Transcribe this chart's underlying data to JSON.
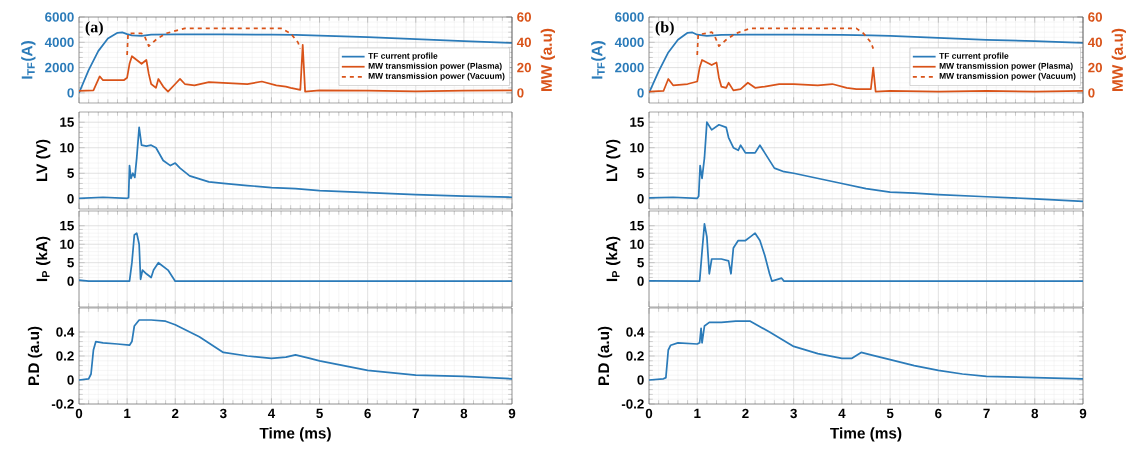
{
  "chart_data": [
    {
      "type": "line",
      "ylabel": "I$_{TF}$(A)",
      "y2label": "MW (a.u)",
      "annotations": [
        "(a)"
      ],
      "xlim": [
        0,
        9
      ],
      "xticks": [
        0,
        1,
        2,
        3,
        4,
        5,
        6,
        7,
        8,
        9
      ],
      "ylim": [
        -800,
        6000
      ],
      "yticks": [
        0,
        2000,
        4000,
        6000
      ],
      "y2lim": [
        -8,
        60
      ],
      "y2ticks": [
        0,
        20,
        40,
        60
      ],
      "grid": true,
      "legend": "bottom right",
      "tick_labels": "y",
      "series": [
        {
          "name": "TF current profile",
          "color": "#2b7bb9",
          "x": [
            0,
            0.2,
            0.4,
            0.6,
            0.8,
            0.9,
            1.0,
            1.1,
            1.3,
            1.5,
            2,
            3,
            4,
            4.5,
            5,
            6,
            7,
            8,
            9
          ],
          "values": [
            0,
            1800,
            3300,
            4300,
            4750,
            4780,
            4650,
            4550,
            4500,
            4600,
            4620,
            4620,
            4600,
            4580,
            4520,
            4400,
            4250,
            4100,
            3950
          ]
        },
        {
          "name": "MW transmission power (Plasma)",
          "color": "#d95319",
          "axis": "y2",
          "x": [
            0,
            0.3,
            0.43,
            0.5,
            0.93,
            1.0,
            1.05,
            1.1,
            1.2,
            1.3,
            1.4,
            1.45,
            1.5,
            1.6,
            1.65,
            1.75,
            1.85,
            2.0,
            2.1,
            2.2,
            2.4,
            2.7,
            3.0,
            3.5,
            3.8,
            4.1,
            4.3,
            4.4,
            4.6,
            4.65,
            4.7,
            5,
            6,
            7,
            8,
            9
          ],
          "values": [
            1.5,
            2,
            13,
            10,
            10,
            12,
            23,
            29,
            26,
            23,
            26,
            15,
            7,
            4,
            11,
            5,
            1,
            7,
            11,
            7,
            6,
            8.5,
            8,
            7,
            9,
            6,
            5,
            4,
            2.4,
            38,
            1,
            2,
            1.7,
            1.2,
            1.7,
            2
          ]
        },
        {
          "name": "MW transmission power (Vacuum)",
          "color": "#d95319",
          "axis": "y2",
          "line_style": "dashed",
          "x": [
            1.0,
            1.02,
            1.3,
            1.35,
            1.45,
            1.6,
            1.8,
            2.0,
            2.2,
            3,
            4,
            4.2,
            4.4,
            4.55,
            4.6
          ],
          "values": [
            30,
            47,
            47,
            46,
            37,
            42,
            47,
            49,
            51,
            51,
            51,
            51,
            47,
            40,
            35
          ]
        }
      ]
    },
    {
      "type": "line",
      "ylabel": "LV (V)",
      "xlim": [
        0,
        9
      ],
      "xticks": [
        0,
        1,
        2,
        3,
        4,
        5,
        6,
        7,
        8,
        9
      ],
      "ylim": [
        -2,
        17
      ],
      "yticks": [
        0,
        5,
        10,
        15
      ],
      "grid": true,
      "tick_labels": "y",
      "series": [
        {
          "color": "#2b7bb9",
          "x": [
            0,
            0.5,
            1.0,
            1.03,
            1.05,
            1.08,
            1.12,
            1.16,
            1.2,
            1.25,
            1.3,
            1.4,
            1.5,
            1.6,
            1.75,
            1.9,
            2.0,
            2.1,
            2.3,
            2.7,
            3,
            3.5,
            4,
            4.5,
            5,
            6,
            7,
            8,
            9
          ],
          "values": [
            0.1,
            0.3,
            0.1,
            0.2,
            6.5,
            4,
            5,
            4.2,
            8,
            14,
            10.5,
            10.3,
            10.5,
            10,
            7.5,
            6.5,
            7,
            6,
            4.5,
            3.3,
            3,
            2.6,
            2.2,
            2,
            1.6,
            1.2,
            0.8,
            0.5,
            0.3
          ]
        }
      ]
    },
    {
      "type": "line",
      "ylabel": "I$_{P}$ (kA)",
      "xlim": [
        0,
        9
      ],
      "xticks": [
        0,
        1,
        2,
        3,
        4,
        5,
        6,
        7,
        8,
        9
      ],
      "ylim": [
        -7,
        19
      ],
      "yticks": [
        0,
        5,
        10,
        15
      ],
      "grid": true,
      "tick_labels": "y",
      "series": [
        {
          "color": "#2b7bb9",
          "x": [
            0,
            0.2,
            1.05,
            1.1,
            1.15,
            1.2,
            1.25,
            1.28,
            1.32,
            1.4,
            1.5,
            1.55,
            1.65,
            1.75,
            1.85,
            1.95,
            2.0,
            9
          ],
          "values": [
            0.3,
            0,
            0,
            5,
            12.5,
            13,
            10,
            0.5,
            3,
            2,
            1,
            3,
            5,
            4,
            3,
            1,
            0,
            0
          ]
        }
      ]
    },
    {
      "type": "line",
      "ylabel": "P.D (a.u)",
      "xlabel": "Time (ms)",
      "xlim": [
        0,
        9
      ],
      "xticks": [
        0,
        1,
        2,
        3,
        4,
        5,
        6,
        7,
        8,
        9
      ],
      "ylim": [
        -0.2,
        0.6
      ],
      "yticks": [
        -0.2,
        0,
        0.2,
        0.4
      ],
      "grid": true,
      "series": [
        {
          "color": "#2b7bb9",
          "x": [
            0,
            0.2,
            0.25,
            0.3,
            0.35,
            0.5,
            0.8,
            1.05,
            1.1,
            1.15,
            1.25,
            1.5,
            1.8,
            2.0,
            2.5,
            3,
            3.5,
            4,
            4.3,
            4.5,
            4.8,
            5,
            5.5,
            6,
            6.5,
            7,
            8,
            9
          ],
          "values": [
            0,
            0.01,
            0.05,
            0.25,
            0.32,
            0.31,
            0.3,
            0.29,
            0.32,
            0.45,
            0.5,
            0.5,
            0.49,
            0.46,
            0.36,
            0.23,
            0.2,
            0.18,
            0.19,
            0.21,
            0.18,
            0.16,
            0.12,
            0.08,
            0.06,
            0.04,
            0.03,
            0.01
          ]
        }
      ]
    },
    {
      "type": "line",
      "ylabel": "I$_{TF}$(A)",
      "y2label": "MW (a.u)",
      "annotations": [
        "(b)"
      ],
      "xlim": [
        0,
        9
      ],
      "xticks": [
        0,
        1,
        2,
        3,
        4,
        5,
        6,
        7,
        8,
        9
      ],
      "ylim": [
        -800,
        6000
      ],
      "yticks": [
        0,
        2000,
        4000,
        6000
      ],
      "y2lim": [
        -8,
        60
      ],
      "y2ticks": [
        0,
        20,
        40,
        60
      ],
      "grid": true,
      "legend": "bottom right",
      "tick_labels": "y",
      "series": [
        {
          "name": "TF current profile",
          "color": "#2b7bb9",
          "x": [
            0,
            0.2,
            0.4,
            0.6,
            0.8,
            0.9,
            1.0,
            1.2,
            1.5,
            2,
            3,
            4,
            4.6,
            5,
            6,
            7,
            8,
            9
          ],
          "values": [
            0,
            1700,
            3200,
            4200,
            4750,
            4780,
            4600,
            4500,
            4580,
            4600,
            4600,
            4580,
            4550,
            4500,
            4350,
            4200,
            4100,
            3950
          ]
        },
        {
          "name": "MW transmission power (Plasma)",
          "color": "#d95319",
          "axis": "y2",
          "x": [
            0,
            0.3,
            0.4,
            0.5,
            0.8,
            1.0,
            1.05,
            1.1,
            1.2,
            1.3,
            1.4,
            1.45,
            1.5,
            1.6,
            1.65,
            1.75,
            1.9,
            2.05,
            2.2,
            2.4,
            2.7,
            3,
            3.5,
            3.8,
            4.1,
            4.3,
            4.6,
            4.65,
            4.7,
            5,
            6,
            7,
            8,
            9
          ],
          "values": [
            1,
            1.5,
            11,
            6,
            7,
            9,
            20,
            26,
            24,
            22,
            24,
            12,
            5,
            4,
            8,
            2,
            3,
            8,
            4,
            5,
            7,
            7,
            6,
            7,
            4,
            3,
            3,
            20,
            1,
            1.5,
            1,
            1.5,
            1,
            1.5
          ]
        },
        {
          "name": "MW transmission power (Vacuum)",
          "color": "#d95319",
          "axis": "y2",
          "line_style": "dashed",
          "x": [
            1.0,
            1.02,
            1.3,
            1.35,
            1.45,
            1.6,
            1.8,
            2.1,
            3,
            4,
            4.3,
            4.45,
            4.6,
            4.65
          ],
          "values": [
            30,
            46,
            48,
            46,
            37,
            42,
            47,
            51,
            51,
            51,
            51,
            47,
            40,
            35
          ]
        }
      ]
    },
    {
      "type": "line",
      "ylabel": "LV (V)",
      "xlim": [
        0,
        9
      ],
      "xticks": [
        0,
        1,
        2,
        3,
        4,
        5,
        6,
        7,
        8,
        9
      ],
      "ylim": [
        -2,
        17
      ],
      "yticks": [
        0,
        5,
        10,
        15
      ],
      "grid": true,
      "tick_labels": "y",
      "series": [
        {
          "color": "#2b7bb9",
          "x": [
            0,
            0.5,
            1.0,
            1.03,
            1.06,
            1.1,
            1.15,
            1.2,
            1.3,
            1.45,
            1.6,
            1.65,
            1.75,
            1.85,
            1.9,
            2.0,
            2.2,
            2.3,
            2.4,
            2.6,
            2.8,
            3,
            3.5,
            4,
            4.5,
            5,
            5.5,
            6,
            7,
            8,
            9
          ],
          "values": [
            0.2,
            0.3,
            0.1,
            0.5,
            6.5,
            4,
            8,
            15,
            13.5,
            14.5,
            14,
            12,
            10,
            9.5,
            10.5,
            9,
            9,
            10.5,
            9,
            6,
            5.3,
            5,
            4,
            3,
            2,
            1.3,
            1.1,
            0.8,
            0.4,
            0,
            -0.5
          ]
        }
      ]
    },
    {
      "type": "line",
      "ylabel": "I$_{P}$ (kA)",
      "xlim": [
        0,
        9
      ],
      "xticks": [
        0,
        1,
        2,
        3,
        4,
        5,
        6,
        7,
        8,
        9
      ],
      "ylim": [
        -7,
        19
      ],
      "yticks": [
        0,
        5,
        10,
        15
      ],
      "grid": true,
      "tick_labels": "y",
      "series": [
        {
          "color": "#2b7bb9",
          "x": [
            0,
            1.0,
            1.05,
            1.1,
            1.15,
            1.2,
            1.25,
            1.3,
            1.5,
            1.65,
            1.7,
            1.75,
            1.85,
            2.0,
            2.1,
            2.2,
            2.3,
            2.4,
            2.5,
            2.55,
            2.75,
            2.8,
            9
          ],
          "values": [
            0.1,
            0,
            0,
            8,
            15.5,
            12,
            2,
            6,
            6,
            5.5,
            2,
            9,
            11,
            11,
            12,
            13,
            11,
            7,
            2,
            0,
            0.8,
            0,
            0
          ]
        }
      ]
    },
    {
      "type": "line",
      "ylabel": "P.D (a.u)",
      "xlabel": "Time (ms)",
      "xlim": [
        0,
        9
      ],
      "xticks": [
        0,
        1,
        2,
        3,
        4,
        5,
        6,
        7,
        8,
        9
      ],
      "ylim": [
        -0.2,
        0.6
      ],
      "yticks": [
        -0.2,
        0,
        0.2,
        0.4
      ],
      "grid": true,
      "series": [
        {
          "color": "#2b7bb9",
          "x": [
            0,
            0.3,
            0.35,
            0.4,
            0.45,
            0.6,
            1.0,
            1.05,
            1.08,
            1.1,
            1.15,
            1.25,
            1.5,
            1.8,
            2.1,
            2.5,
            3,
            3.5,
            4,
            4.2,
            4.4,
            4.6,
            5,
            5.5,
            6,
            6.5,
            7,
            8,
            9
          ],
          "values": [
            0,
            0.01,
            0.02,
            0.25,
            0.29,
            0.31,
            0.3,
            0.31,
            0.43,
            0.31,
            0.45,
            0.48,
            0.48,
            0.49,
            0.49,
            0.4,
            0.28,
            0.22,
            0.18,
            0.18,
            0.23,
            0.21,
            0.17,
            0.12,
            0.08,
            0.05,
            0.03,
            0.02,
            0.01
          ]
        }
      ]
    }
  ]
}
